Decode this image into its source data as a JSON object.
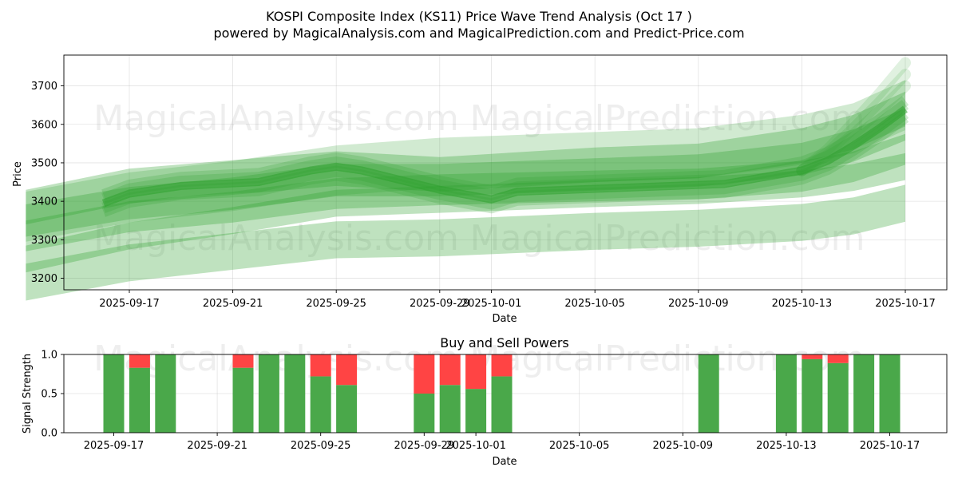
{
  "title_line1": "KOSPI Composite Index (KS11) Price Wave Trend Analysis (Oct 17 )",
  "title_line2": "powered by MagicalAnalysis.com and MagicalPrediction.com and Predict-Price.com",
  "watermarks": [
    "MagicalAnalysis.com",
    "MagicalPrediction.com"
  ],
  "colors": {
    "band": "#2ca02c",
    "buy": "#4aa84a",
    "sell": "#ff4444"
  },
  "chart_data": [
    {
      "type": "area",
      "title": "",
      "xlabel": "Date",
      "ylabel": "Price",
      "ylim": [
        3170,
        3780
      ],
      "xlim": [
        "2025-09-13",
        "2025-10-18"
      ],
      "yticks": [
        3200,
        3300,
        3400,
        3500,
        3600,
        3700
      ],
      "xticks": [
        "2025-09-17",
        "2025-09-21",
        "2025-09-25",
        "2025-09-29",
        "2025-10-01",
        "2025-10-05",
        "2025-10-09",
        "2025-10-13",
        "2025-10-17"
      ],
      "center_series": {
        "name": "price trend",
        "x": [
          "2025-09-16",
          "2025-09-17",
          "2025-09-19",
          "2025-09-22",
          "2025-09-24",
          "2025-09-25",
          "2025-09-26",
          "2025-09-29",
          "2025-10-01",
          "2025-10-02",
          "2025-10-10",
          "2025-10-13",
          "2025-10-14",
          "2025-10-15",
          "2025-10-16",
          "2025-10-17"
        ],
        "y": [
          3395,
          3420,
          3440,
          3450,
          3480,
          3490,
          3480,
          3430,
          3405,
          3425,
          3445,
          3480,
          3505,
          3545,
          3590,
          3640
        ]
      },
      "wave_bands": [
        {
          "x": [
            "2025-09-13",
            "2025-09-17",
            "2025-09-21",
            "2025-09-25",
            "2025-09-29",
            "2025-10-05",
            "2025-10-09",
            "2025-10-13",
            "2025-10-15",
            "2025-10-17"
          ],
          "y": [
            3385,
            3440,
            3462,
            3485,
            3470,
            3495,
            3505,
            3545,
            3580,
            3640
          ],
          "half_width": 45
        },
        {
          "x": [
            "2025-09-13",
            "2025-09-17",
            "2025-09-21",
            "2025-09-25",
            "2025-09-29",
            "2025-10-05",
            "2025-10-09",
            "2025-10-13",
            "2025-10-15",
            "2025-10-17"
          ],
          "y": [
            3350,
            3395,
            3420,
            3455,
            3455,
            3470,
            3480,
            3510,
            3545,
            3600
          ],
          "half_width": 42
        },
        {
          "x": [
            "2025-09-13",
            "2025-09-17",
            "2025-09-21",
            "2025-09-25",
            "2025-09-29",
            "2025-10-05",
            "2025-10-09",
            "2025-10-13",
            "2025-10-15",
            "2025-10-17"
          ],
          "y": [
            3310,
            3360,
            3385,
            3420,
            3430,
            3440,
            3445,
            3465,
            3490,
            3535
          ],
          "half_width": 40
        },
        {
          "x": [
            "2025-09-13",
            "2025-09-17",
            "2025-09-21",
            "2025-09-25",
            "2025-09-29",
            "2025-10-05",
            "2025-10-09",
            "2025-10-13",
            "2025-10-15",
            "2025-10-17"
          ],
          "y": [
            3250,
            3310,
            3350,
            3395,
            3405,
            3420,
            3428,
            3445,
            3462,
            3490
          ],
          "half_width": 35
        },
        {
          "x": [
            "2025-09-13",
            "2025-09-17",
            "2025-09-21",
            "2025-09-25",
            "2025-09-29",
            "2025-10-05",
            "2025-10-09",
            "2025-10-13",
            "2025-10-15",
            "2025-10-17"
          ],
          "y": [
            3190,
            3240,
            3270,
            3300,
            3305,
            3322,
            3330,
            3345,
            3362,
            3395
          ],
          "half_width": 48
        },
        {
          "x": [
            "2025-09-13",
            "2025-09-17",
            "2025-09-21",
            "2025-09-25",
            "2025-09-29",
            "2025-10-05",
            "2025-10-09",
            "2025-10-13",
            "2025-10-15",
            "2025-10-17"
          ],
          "y": [
            3360,
            3410,
            3440,
            3480,
            3500,
            3515,
            3525,
            3560,
            3590,
            3650
          ],
          "half_width": 65
        }
      ]
    },
    {
      "type": "bar",
      "title": "Buy and Sell Powers",
      "xlabel": "Date",
      "ylabel": "Signal Strength",
      "ylim": [
        0,
        1
      ],
      "yticks": [
        "0.0",
        "0.5",
        "1.0"
      ],
      "xticks": [
        "2025-09-17",
        "2025-09-21",
        "2025-09-25",
        "2025-09-29",
        "2025-10-01",
        "2025-10-05",
        "2025-10-09",
        "2025-10-13",
        "2025-10-17"
      ],
      "categories": [
        "2025-09-17",
        "2025-09-18",
        "2025-09-19",
        "2025-09-22",
        "2025-09-23",
        "2025-09-24",
        "2025-09-25",
        "2025-09-26",
        "2025-09-29",
        "2025-09-30",
        "2025-10-01",
        "2025-10-02",
        "2025-10-10",
        "2025-10-13",
        "2025-10-14",
        "2025-10-15",
        "2025-10-16",
        "2025-10-17"
      ],
      "series": [
        {
          "name": "Buy",
          "values": [
            1.0,
            0.83,
            1.0,
            0.83,
            1.0,
            1.0,
            0.72,
            0.61,
            0.5,
            0.61,
            0.56,
            0.72,
            1.0,
            1.0,
            0.94,
            0.89,
            1.0,
            1.0
          ]
        },
        {
          "name": "Sell",
          "values": [
            0.0,
            0.17,
            0.0,
            0.17,
            0.0,
            0.0,
            0.28,
            0.39,
            0.5,
            0.39,
            0.44,
            0.28,
            0.0,
            0.0,
            0.06,
            0.11,
            0.0,
            0.0
          ]
        }
      ]
    }
  ]
}
